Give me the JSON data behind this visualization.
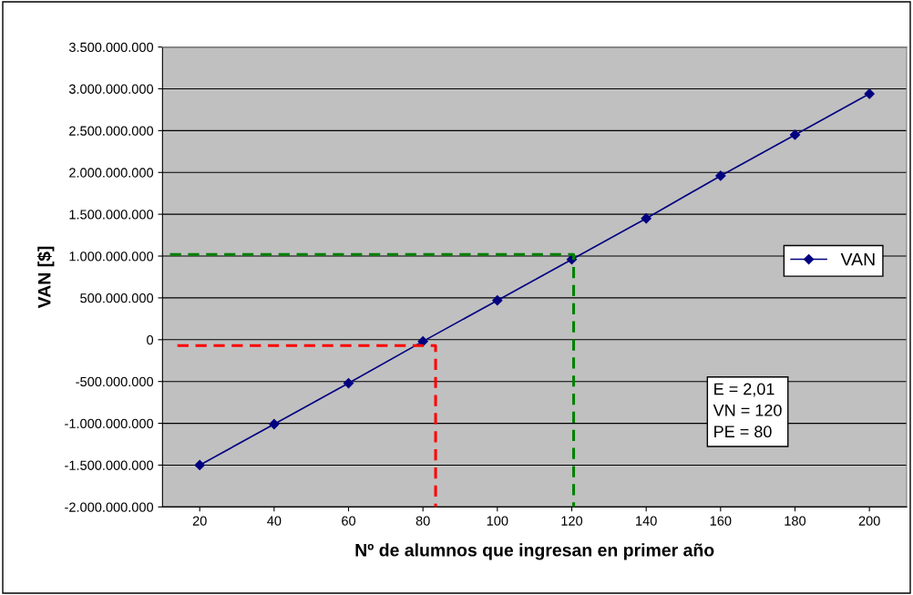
{
  "chart_data": {
    "type": "line",
    "xlabel": "Nº de alumnos que ingresan en primer año",
    "ylabel": "VAN [$]",
    "x": [
      20,
      40,
      60,
      80,
      100,
      120,
      140,
      160,
      180,
      200
    ],
    "series": [
      {
        "name": "VAN",
        "color": "#000080",
        "marker": "diamond",
        "values": [
          -1500000000,
          -1010000000,
          -520000000,
          -20000000,
          470000000,
          960000000,
          1450000000,
          1960000000,
          2450000000,
          2940000000
        ]
      },
      {
        "color": "#ff0000",
        "line_style": "dashed",
        "marker": "none",
        "x": [
          14,
          83.4,
          83.4
        ],
        "values": [
          -70000000,
          -70000000,
          -2000000000
        ]
      },
      {
        "color": "#008000",
        "line_style": "dashed",
        "marker": "none",
        "x": [
          12,
          120.5,
          120.5
        ],
        "values": [
          1020000000,
          1020000000,
          -2000000000
        ]
      }
    ],
    "xlim": [
      10,
      210
    ],
    "xticks": [
      20,
      40,
      60,
      80,
      100,
      120,
      140,
      160,
      180,
      200
    ],
    "ylim": [
      -2000000000,
      3500000000
    ],
    "yticks": [
      {
        "value": -2000000000,
        "label": "-2.000.000.000"
      },
      {
        "value": -1500000000,
        "label": "-1.500.000.000"
      },
      {
        "value": -1000000000,
        "label": "-1.000.000.000"
      },
      {
        "value": -500000000,
        "label": "-500.000.000"
      },
      {
        "value": 0,
        "label": "0"
      },
      {
        "value": 500000000,
        "label": "500.000.000"
      },
      {
        "value": 1000000000,
        "label": "1.000.000.000"
      },
      {
        "value": 1500000000,
        "label": "1.500.000.000"
      },
      {
        "value": 2000000000,
        "label": "2.000.000.000"
      },
      {
        "value": 2500000000,
        "label": "2.500.000.000"
      },
      {
        "value": 3000000000,
        "label": "3.000.000.000"
      },
      {
        "value": 3500000000,
        "label": "3.500.000.000"
      }
    ],
    "grid": "y",
    "legend": "right",
    "annotations": [
      "E = 2,01\nVN = 120\nPE = 80"
    ]
  }
}
